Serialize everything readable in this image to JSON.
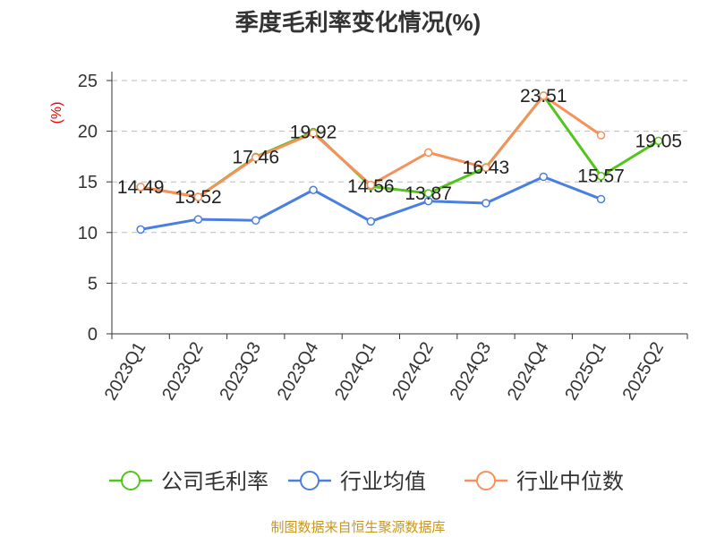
{
  "chart_data": {
    "type": "line",
    "title": "季度毛利率变化情况(%)",
    "ylabel": "(%)",
    "xlabel": "",
    "ylim": [
      0,
      25
    ],
    "yticks": [
      0,
      5,
      10,
      15,
      20,
      25
    ],
    "grid": true,
    "legend_placement": "bottom",
    "categories": [
      "2023Q1",
      "2023Q2",
      "2023Q3",
      "2023Q4",
      "2024Q1",
      "2024Q2",
      "2024Q3",
      "2024Q4",
      "2025Q1",
      "2025Q2"
    ],
    "series": [
      {
        "name": "公司毛利率",
        "color": "#52c41a",
        "labels": true,
        "values": [
          14.49,
          13.52,
          17.46,
          19.92,
          14.56,
          13.87,
          16.43,
          23.51,
          15.57,
          19.05
        ]
      },
      {
        "name": "行业均值",
        "color": "#4a7fe0",
        "labels": false,
        "values": [
          10.3,
          11.3,
          11.2,
          14.2,
          11.1,
          13.1,
          12.9,
          15.5,
          13.3,
          null
        ]
      },
      {
        "name": "行业中位数",
        "color": "#f7905a",
        "labels": false,
        "values": [
          14.5,
          13.5,
          17.4,
          19.8,
          14.7,
          17.9,
          16.4,
          23.5,
          19.6,
          null
        ]
      }
    ]
  },
  "footer": "制图数据来自恒生聚源数据库"
}
